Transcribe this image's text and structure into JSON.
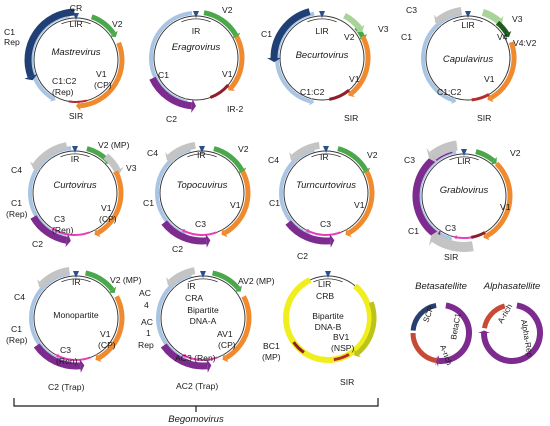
{
  "colors": {
    "c1": "#aac5e4",
    "c1_dark": "#1f3f75",
    "v1": "#f08a2e",
    "v2": "#4aa84a",
    "v3": "#a8d49a",
    "c2": "#7d2b8e",
    "c3": "#e83fb8",
    "c4": "#c4c4c4",
    "ir": "#2a4f8f",
    "sir": "#b52a2a",
    "navy": "#27406e",
    "rep": "#7d2b8e",
    "yellow": "#f1ee20",
    "olive": "#bcc419",
    "a_rich": "#c74a36",
    "beta_c1": "#7d2b8e",
    "dkgreen": "#1e5b1e",
    "wine": "#8c1f2a"
  },
  "footer": {
    "label": "Begomovirus"
  },
  "genomes": [
    {
      "id": "mastrevirus",
      "name": "Mastrevirus",
      "labels": {
        "CR": "CR",
        "LIR": "LIR",
        "V2": "V2",
        "C1": "C1",
        "Rep": "Rep",
        "C1C2": "C1:C2",
        "RepP": "(Rep)",
        "V1": "V1",
        "CP": "(CP)",
        "SIR": "SIR"
      }
    },
    {
      "id": "eragrovirus",
      "name": "Eragrovirus",
      "labels": {
        "IR": "IR",
        "V2": "V2",
        "C1": "C1",
        "V1": "V1",
        "C2": "C2",
        "IR2": "IR-2"
      }
    },
    {
      "id": "becurtovirus",
      "name": "Becurtovirus",
      "labels": {
        "LIR": "LIR",
        "C1": "C1",
        "V2": "V2",
        "V3": "V3",
        "V1": "V1",
        "C1C2": "C1:C2",
        "SIR": "SIR"
      }
    },
    {
      "id": "capulavirus",
      "name": "Capulavirus",
      "labels": {
        "C3": "C3",
        "LIR": "LIR",
        "V3": "V3",
        "C1": "C1",
        "V4": "V4",
        "V4V2": "V4:V2",
        "V1": "V1",
        "C1C2": "C1:C2",
        "SIR": "SIR"
      }
    },
    {
      "id": "curtovirus",
      "name": "Curtovirus",
      "labels": {
        "V2MP": "V2 (MP)",
        "C4": "C4",
        "IR": "IR",
        "V3": "V3",
        "C1": "C1",
        "Rep": "(Rep)",
        "C3": "C3",
        "Ren": "(Ren)",
        "V1": "V1",
        "CP": "(CP)",
        "C2": "C2"
      }
    },
    {
      "id": "topocuvirus",
      "name": "Topocuvirus",
      "labels": {
        "C4": "C4",
        "IR": "IR",
        "V2": "V2",
        "C1": "C1",
        "V1": "V1",
        "C3": "C3",
        "C2": "C2"
      }
    },
    {
      "id": "turncurtovirus",
      "name": "Turncurtovirus",
      "labels": {
        "C4": "C4",
        "IR": "IR",
        "V2": "V2",
        "C1": "C1",
        "V1": "V1",
        "C3": "C3",
        "C2": "C2"
      }
    },
    {
      "id": "grablovirus",
      "name": "Grablovirus",
      "labels": {
        "C3": "C3",
        "LIR": "LIR",
        "V2": "V2",
        "V1": "V1",
        "C1": "C1",
        "C3b": "C3",
        "SIR": "SIR"
      }
    },
    {
      "id": "monopartite",
      "name": "Monopartite",
      "labels": {
        "C4": "C4",
        "IR": "IR",
        "V2MP": "V2 (MP)",
        "C1": "C1",
        "Rep": "(Rep)",
        "V1": "V1",
        "CP": "(CP)",
        "C3": "C3",
        "Ren": "(Ren)",
        "C2Trap": "C2 (Trap)"
      }
    },
    {
      "id": "dna_a",
      "name": "Bipartite",
      "name2": "DNA-A",
      "labels": {
        "AC4a": "AC",
        "AC4b": "4",
        "IR": "IR",
        "CRA": "CRA",
        "AV2MP": "AV2 (MP)",
        "AC1a": "AC",
        "AC1b": "1",
        "AC1c": "Rep",
        "AV1": "AV1",
        "CP": "(CP)",
        "AC3Ren": "AC3 (Ren)",
        "AC2Trap": "AC2 (Trap)"
      }
    },
    {
      "id": "dna_b",
      "name": "Bipartite",
      "name2": "DNA-B",
      "labels": {
        "LIR": "LIR",
        "CRB": "CRB",
        "BC1": "BC1",
        "MP": "(MP)",
        "BV1": "BV1",
        "NSP": "(NSP)",
        "SIR": "SIR"
      }
    },
    {
      "id": "betasatellite",
      "name": "Betasatellite",
      "labels": {
        "SCR": "SCR",
        "Arich": "A-rich",
        "BetaC1": "BetaC1"
      }
    },
    {
      "id": "alphasatellite",
      "name": "Alphasatellite",
      "labels": {
        "Arich": "A-rich",
        "AlphaRep": "Alpha-Rep"
      }
    }
  ]
}
